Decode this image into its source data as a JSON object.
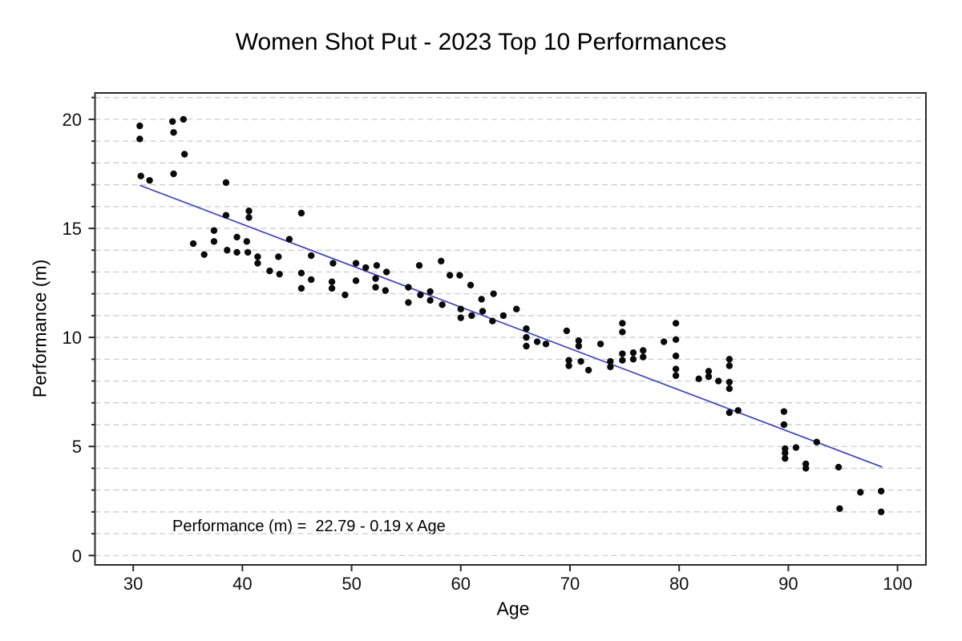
{
  "chart_data": {
    "type": "scatter",
    "title": "Women Shot Put - 2023 Top 10 Performances",
    "xlabel": "Age",
    "ylabel": "Performance (m)",
    "annotation": "Performance (m) =  22.79 - 0.19 x Age",
    "x_ticks": [
      30,
      40,
      50,
      60,
      70,
      80,
      90,
      100
    ],
    "y_ticks_major": [
      0,
      5,
      10,
      15,
      20
    ],
    "y_gridline_step": 1,
    "xlim": [
      26.5,
      102.6
    ],
    "ylim": [
      -0.43,
      21.21
    ],
    "grid": "horizontal-dashed",
    "legend_position": "none",
    "colors": {
      "point": "#0a0a0a",
      "regression_line": "#3f3fd2",
      "gridline": "#c8c8c8",
      "axis": "#2a2a2a",
      "text": "#000000"
    },
    "regression_line": {
      "equation_intercept": 22.79,
      "equation_slope": -0.19,
      "x_start": 30.6,
      "x_end": 98.6
    },
    "points": [
      [
        30.6,
        19.7
      ],
      [
        30.6,
        19.1
      ],
      [
        30.7,
        17.4
      ],
      [
        31.5,
        17.2
      ],
      [
        33.6,
        19.9
      ],
      [
        33.7,
        19.4
      ],
      [
        33.7,
        17.5
      ],
      [
        34.6,
        20.0
      ],
      [
        34.7,
        18.4
      ],
      [
        35.5,
        14.3
      ],
      [
        36.5,
        13.8
      ],
      [
        37.4,
        14.9
      ],
      [
        37.4,
        14.4
      ],
      [
        38.5,
        17.1
      ],
      [
        38.5,
        15.6
      ],
      [
        38.6,
        14.0
      ],
      [
        39.5,
        14.6
      ],
      [
        39.5,
        13.9
      ],
      [
        40.4,
        14.4
      ],
      [
        40.5,
        13.9
      ],
      [
        40.6,
        15.8
      ],
      [
        40.6,
        15.5
      ],
      [
        41.4,
        13.7
      ],
      [
        41.4,
        13.4
      ],
      [
        42.5,
        13.05
      ],
      [
        43.3,
        13.7
      ],
      [
        43.4,
        12.9
      ],
      [
        44.3,
        14.5
      ],
      [
        45.4,
        15.7
      ],
      [
        45.4,
        12.95
      ],
      [
        45.4,
        12.25
      ],
      [
        46.3,
        13.75
      ],
      [
        46.3,
        12.65
      ],
      [
        48.2,
        12.55
      ],
      [
        48.2,
        12.25
      ],
      [
        48.3,
        13.4
      ],
      [
        49.4,
        11.95
      ],
      [
        50.4,
        13.4
      ],
      [
        50.4,
        12.6
      ],
      [
        51.3,
        13.2
      ],
      [
        52.2,
        12.7
      ],
      [
        52.2,
        12.3
      ],
      [
        52.3,
        13.3
      ],
      [
        53.1,
        12.15
      ],
      [
        53.2,
        13.0
      ],
      [
        55.2,
        12.3
      ],
      [
        55.2,
        11.6
      ],
      [
        56.2,
        13.3
      ],
      [
        56.3,
        11.95
      ],
      [
        57.2,
        12.1
      ],
      [
        57.2,
        11.7
      ],
      [
        58.2,
        13.5
      ],
      [
        58.3,
        11.5
      ],
      [
        59.0,
        12.85
      ],
      [
        59.9,
        12.85
      ],
      [
        60.0,
        11.3
      ],
      [
        60.0,
        10.9
      ],
      [
        60.9,
        12.4
      ],
      [
        61.0,
        11.0
      ],
      [
        61.9,
        11.75
      ],
      [
        62.0,
        11.2
      ],
      [
        62.9,
        10.75
      ],
      [
        63.0,
        12.0
      ],
      [
        63.9,
        11.0
      ],
      [
        65.1,
        11.3
      ],
      [
        66.0,
        10.4
      ],
      [
        66.0,
        10.0
      ],
      [
        66.0,
        9.6
      ],
      [
        67.0,
        9.8
      ],
      [
        67.8,
        9.7
      ],
      [
        69.7,
        10.3
      ],
      [
        69.9,
        8.95
      ],
      [
        69.9,
        8.7
      ],
      [
        70.8,
        9.85
      ],
      [
        70.8,
        9.6
      ],
      [
        71.0,
        8.9
      ],
      [
        71.7,
        8.5
      ],
      [
        72.8,
        9.7
      ],
      [
        73.7,
        8.9
      ],
      [
        73.7,
        8.65
      ],
      [
        74.8,
        10.65
      ],
      [
        74.8,
        10.25
      ],
      [
        74.8,
        9.25
      ],
      [
        74.8,
        8.95
      ],
      [
        75.8,
        9.3
      ],
      [
        75.8,
        9.0
      ],
      [
        76.7,
        9.4
      ],
      [
        76.7,
        9.1
      ],
      [
        78.6,
        9.8
      ],
      [
        79.7,
        10.65
      ],
      [
        79.7,
        9.9
      ],
      [
        79.7,
        9.15
      ],
      [
        79.7,
        8.55
      ],
      [
        79.7,
        8.25
      ],
      [
        81.8,
        8.1
      ],
      [
        82.7,
        8.45
      ],
      [
        82.7,
        8.2
      ],
      [
        83.6,
        8.0
      ],
      [
        84.6,
        9.0
      ],
      [
        84.6,
        8.7
      ],
      [
        84.6,
        7.95
      ],
      [
        84.6,
        7.65
      ],
      [
        84.6,
        6.55
      ],
      [
        85.4,
        6.65
      ],
      [
        89.6,
        6.6
      ],
      [
        89.6,
        6.0
      ],
      [
        89.7,
        4.9
      ],
      [
        89.7,
        4.7
      ],
      [
        89.7,
        4.45
      ],
      [
        90.7,
        4.95
      ],
      [
        91.6,
        4.2
      ],
      [
        91.6,
        4.0
      ],
      [
        92.6,
        5.2
      ],
      [
        94.6,
        4.05
      ],
      [
        94.7,
        2.15
      ],
      [
        96.6,
        2.9
      ],
      [
        98.5,
        2.95
      ],
      [
        98.5,
        2.0
      ]
    ]
  }
}
